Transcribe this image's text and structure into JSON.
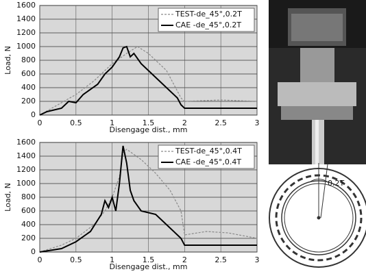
{
  "chart_data": [
    {
      "type": "line",
      "ylabel": "Load, N",
      "xlabel": "Disengage dist., mm",
      "xlim": [
        0,
        3
      ],
      "xticks": [
        0,
        0.5,
        1,
        1.5,
        2,
        2.5,
        3
      ],
      "ylim": [
        0,
        1600
      ],
      "yticks": [
        0,
        200,
        400,
        600,
        800,
        1000,
        1200,
        1400,
        1600
      ],
      "grid": true,
      "legend": "top-right",
      "series": [
        {
          "name": "TEST-de_45°,0.2T",
          "color": "#8a8a8a",
          "style": "dashed",
          "x": [
            0,
            0.25,
            0.5,
            0.75,
            1.0,
            1.2,
            1.35,
            1.5,
            1.75,
            1.95,
            2.0,
            2.5,
            3
          ],
          "values": [
            0,
            150,
            300,
            500,
            750,
            900,
            1000,
            900,
            650,
            250,
            200,
            220,
            200
          ]
        },
        {
          "name": "CAE -de_45°,0.2T",
          "color": "#000000",
          "style": "solid",
          "x": [
            0,
            0.1,
            0.3,
            0.4,
            0.5,
            0.6,
            0.8,
            0.9,
            1.0,
            1.1,
            1.15,
            1.2,
            1.25,
            1.3,
            1.4,
            1.5,
            1.6,
            1.7,
            1.8,
            1.9,
            1.95,
            2.0,
            3
          ],
          "values": [
            0,
            50,
            100,
            200,
            180,
            300,
            450,
            600,
            700,
            850,
            980,
            1000,
            850,
            900,
            750,
            650,
            550,
            450,
            350,
            250,
            150,
            100,
            100
          ]
        }
      ]
    },
    {
      "type": "line",
      "ylabel": "Load, N",
      "xlabel": "Disengage dist., mm",
      "xlim": [
        0,
        3
      ],
      "xticks": [
        0,
        0.5,
        1,
        1.5,
        2,
        2.5,
        3
      ],
      "ylim": [
        0,
        1600
      ],
      "yticks": [
        0,
        200,
        400,
        600,
        800,
        1000,
        1200,
        1400,
        1600
      ],
      "grid": true,
      "legend": "top-right",
      "series": [
        {
          "name": "TEST-de_45°,0.4T",
          "color": "#8a8a8a",
          "style": "dashed",
          "x": [
            0,
            0.3,
            0.5,
            0.75,
            0.9,
            1.0,
            1.1,
            1.15,
            1.2,
            1.4,
            1.6,
            1.8,
            1.95,
            2.0,
            2.3,
            2.6,
            3
          ],
          "values": [
            0,
            100,
            200,
            400,
            600,
            800,
            1100,
            1450,
            1500,
            1350,
            1150,
            900,
            600,
            250,
            300,
            280,
            200
          ]
        },
        {
          "name": "CAE -de_45°,0.4T",
          "color": "#000000",
          "style": "solid",
          "x": [
            0,
            0.3,
            0.5,
            0.7,
            0.85,
            0.9,
            0.95,
            1.0,
            1.05,
            1.1,
            1.15,
            1.2,
            1.25,
            1.3,
            1.4,
            1.6,
            1.7,
            1.8,
            1.95,
            2.0,
            3
          ],
          "values": [
            0,
            50,
            150,
            300,
            550,
            750,
            650,
            800,
            600,
            1000,
            1550,
            1300,
            900,
            750,
            600,
            550,
            450,
            350,
            200,
            100,
            100
          ]
        }
      ]
    }
  ],
  "diagram": {
    "label": "0.2T"
  }
}
